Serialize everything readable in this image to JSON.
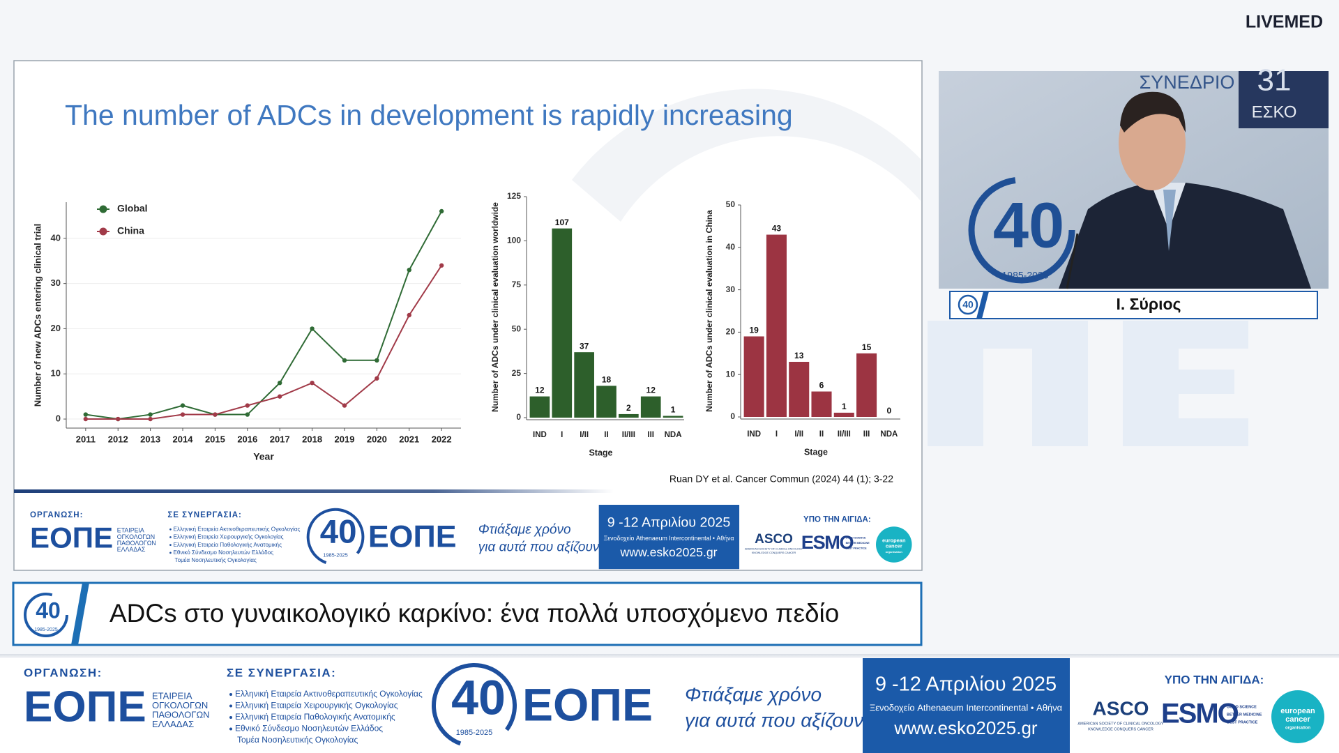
{
  "brand": "LIVEMED",
  "slide": {
    "title": "The number of ADCs in development is rapidly increasing",
    "citation": "Ruan DY et al. Cancer Commun (2024) 44 (1); 3-22",
    "charts": [
      {
        "type": "line",
        "x_label": "Year",
        "y_label": "Number of new ADCs entering clinical trial",
        "x": [
          2011,
          2012,
          2013,
          2014,
          2015,
          2016,
          2017,
          2018,
          2019,
          2020,
          2021,
          2022
        ],
        "xlim": [
          2010.4,
          2022.6
        ],
        "xticks": [
          2011,
          2012,
          2013,
          2014,
          2015,
          2016,
          2017,
          2018,
          2019,
          2020,
          2021,
          2022
        ],
        "ylim": [
          -2,
          48
        ],
        "yticks": [
          0,
          10,
          20,
          30,
          40
        ],
        "grid": true,
        "legend": "top-left",
        "series": [
          {
            "name": "Global",
            "color": "#2f6b35",
            "values": [
              1,
              0,
              1,
              3,
              1,
              1,
              8,
              20,
              13,
              13,
              33,
              46
            ]
          },
          {
            "name": "China",
            "color": "#a13a48",
            "values": [
              0,
              0,
              0,
              1,
              1,
              3,
              5,
              8,
              3,
              9,
              23,
              34
            ]
          }
        ]
      },
      {
        "type": "bar",
        "x_label": "Stage",
        "y_label": "Number of ADCs under clinical evaluation worldwide",
        "categories": [
          "IND",
          "I",
          "I/II",
          "II",
          "II/III",
          "III",
          "NDA"
        ],
        "values": [
          12,
          107,
          37,
          18,
          2,
          12,
          1
        ],
        "color": "#2d5f2b",
        "ylim": [
          0,
          125
        ],
        "yticks": [
          0,
          25,
          50,
          75,
          100,
          125
        ]
      },
      {
        "type": "bar",
        "x_label": "Stage",
        "y_label": "Number of ADCs under clinical evaluation in China",
        "categories": [
          "IND",
          "I",
          "I/II",
          "II",
          "II/III",
          "III",
          "NDA"
        ],
        "values": [
          19,
          43,
          13,
          6,
          1,
          15,
          0
        ],
        "color": "#9c3442",
        "ylim": [
          0,
          50
        ],
        "yticks": [
          0,
          10,
          20,
          30,
          40,
          50
        ]
      }
    ]
  },
  "video": {
    "backdrop": [
      "ΣΥΝΕΔΡΙΟ",
      "ΕΣΚΟ",
      "31"
    ]
  },
  "speaker": {
    "name": "Ι. Σύριος"
  },
  "talk": {
    "title": "ADCs στο γυναικολογικό καρκίνο: ένα πολλά υποσχόμενο πεδίο"
  },
  "banner": {
    "organiser_label": "ΟΡΓΑΝΩΣΗ:",
    "organiser_logo": "ΕΟΠΕ",
    "organiser_name": [
      "ΕΤΑΙΡΕΙΑ",
      "ΟΓΚΟΛΟΓΩΝ",
      "ΠΑΘΟΛΟΓΩΝ",
      "ΕΛΛΑΔΑΣ"
    ],
    "partners_label": "ΣΕ ΣΥΝΕΡΓΑΣΙΑ:",
    "partners": [
      "Ελληνική Εταιρεία Ακτινοθεραπευτικής Ογκολογίας",
      "Ελληνική Εταιρεία Χειρουργικής Ογκολογίας",
      "Ελληνική Εταιρεία Παθολογικής Ανατομικής",
      "Εθνικό Σύνδεσμο Νοσηλευτών Ελλάδος",
      "Τομέα Νοσηλευτικής Ογκολογίας"
    ],
    "anniversary": "40",
    "anniversary_years": "1985-2025",
    "slogan": [
      "Φτιάξαμε χρόνο",
      "για αυτά που αξίζουν"
    ],
    "dates": "9 -12 Απριλίου 2025",
    "venue": "Ξενοδοχείο Athenaeum Intercontinental • Αθήνα",
    "url": "www.esko2025.gr",
    "auspices_label": "ΥΠΟ ΤΗΝ ΑΙΓΙΔΑ:",
    "asco": "ASCO",
    "asco_tagline": [
      "AMERICAN SOCIETY OF CLINICAL ONCOLOGY",
      "KNOWLEDGE CONQUERS CANCER"
    ],
    "esmo": "ESMO",
    "esmo_tagline": [
      "GOOD SCIENCE",
      "BETTER MEDICINE",
      "BEST PRACTICE"
    ],
    "eco": [
      "european",
      "cancer",
      "organisation"
    ]
  }
}
